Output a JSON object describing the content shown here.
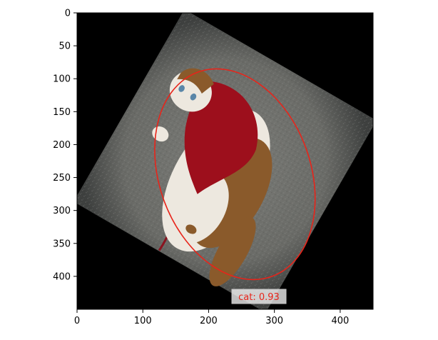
{
  "plot": {
    "xlim": [
      0,
      450
    ],
    "ylim": [
      450,
      0
    ],
    "x_ticks": [
      "0",
      "100",
      "200",
      "300",
      "400"
    ],
    "x_tick_values": [
      0,
      100,
      200,
      300,
      400
    ],
    "y_ticks": [
      "0",
      "50",
      "100",
      "150",
      "200",
      "250",
      "300",
      "350",
      "400"
    ],
    "y_tick_values": [
      0,
      50,
      100,
      150,
      200,
      250,
      300,
      350,
      400
    ],
    "image_rotation_deg": 30,
    "colors": {
      "background_black": "#000000",
      "carpet": "#6f706c",
      "cat_white": "#ede8df",
      "cat_brown": "#8a5a2b",
      "cape_red": "#9d0f1c",
      "detection": "#e8241a"
    }
  },
  "detection": {
    "label": "cat: 0.93",
    "center": [
      240,
      245
    ],
    "semi_axes": [
      115,
      165
    ],
    "rotation_deg": -20
  }
}
